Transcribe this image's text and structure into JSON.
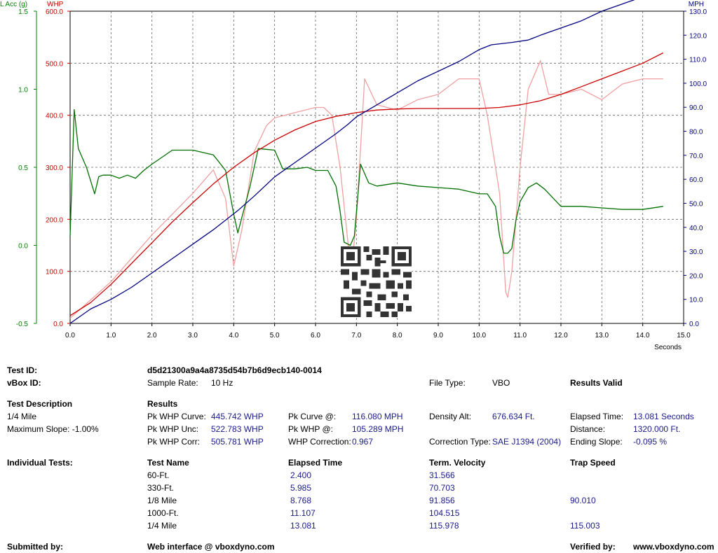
{
  "chart_data": {
    "type": "line",
    "x_axis": {
      "label": "Seconds",
      "range": [
        0,
        15
      ],
      "ticks": [
        "0.0",
        "1.0",
        "2.0",
        "3.0",
        "4.0",
        "5.0",
        "6.0",
        "7.0",
        "8.0",
        "9.0",
        "10.0",
        "11.0",
        "12.0",
        "13.0",
        "14.0",
        "15.0"
      ]
    },
    "y_axes": {
      "lacc": {
        "label": "L Acc (g)",
        "range": [
          -0.5,
          1.5
        ],
        "ticks": [
          "-0.5",
          "0.0",
          "0.5",
          "1.0",
          "1.5"
        ],
        "color": "#008000"
      },
      "whp": {
        "label": "WHP",
        "range": [
          0,
          600
        ],
        "ticks": [
          "0.0",
          "100.0",
          "200.0",
          "300.0",
          "400.0",
          "500.0",
          "600.0"
        ],
        "color": "#cc0000"
      },
      "mph": {
        "label": "MPH",
        "range": [
          0,
          130
        ],
        "ticks": [
          "0.0",
          "10.0",
          "20.0",
          "30.0",
          "40.0",
          "50.0",
          "60.0",
          "70.0",
          "80.0",
          "90.0",
          "100.0",
          "110.0",
          "120.0",
          "130.0"
        ],
        "color": "#000080"
      }
    },
    "grid": true,
    "series": [
      {
        "axis": "mph",
        "color": "#000080",
        "x": [
          0,
          0.5,
          1,
          1.5,
          2,
          2.5,
          3,
          3.5,
          3.8,
          4.1,
          4.5,
          5,
          5.5,
          6,
          6.5,
          6.8,
          7,
          7.5,
          8,
          8.5,
          9,
          9.5,
          10,
          10.3,
          10.8,
          11.2,
          11.5,
          12,
          12.5,
          13,
          13.5,
          14,
          14.5
        ],
        "y": [
          0,
          6,
          10,
          15,
          21,
          27,
          33,
          39,
          43,
          47,
          53,
          61,
          67,
          73,
          79,
          83,
          86,
          91,
          96,
          101,
          105,
          109,
          114,
          116,
          117,
          118,
          120,
          123,
          126,
          130,
          133,
          136,
          139
        ]
      },
      {
        "axis": "whp",
        "color": "#cc0000",
        "x": [
          0,
          0.5,
          1,
          1.5,
          2,
          2.5,
          3,
          3.5,
          4,
          4.5,
          5,
          5.5,
          6,
          6.5,
          7,
          7.5,
          8,
          8.5,
          9,
          9.5,
          10,
          10.5,
          11,
          11.5,
          12,
          12.5,
          13,
          13.5,
          14,
          14.5
        ],
        "y": [
          15,
          40,
          75,
          115,
          155,
          195,
          232,
          268,
          300,
          328,
          352,
          372,
          388,
          398,
          405,
          410,
          412,
          413,
          413,
          413,
          413,
          415,
          420,
          428,
          440,
          455,
          470,
          485,
          500,
          520
        ]
      },
      {
        "axis": "whp",
        "color": "#f0a0a0",
        "x": [
          0,
          1,
          2,
          3,
          3.5,
          3.8,
          4.0,
          4.2,
          4.5,
          4.8,
          5,
          5.5,
          6,
          6.2,
          6.4,
          6.6,
          6.8,
          6.9,
          7.0,
          7.2,
          7.5,
          8,
          8.5,
          9,
          9.5,
          10,
          10.2,
          10.5,
          10.65,
          10.7,
          10.8,
          11,
          11.2,
          11.5,
          11.7,
          12,
          12.5,
          13,
          13.5,
          14,
          14.5
        ],
        "y": [
          10,
          80,
          170,
          250,
          295,
          240,
          110,
          180,
          330,
          380,
          395,
          405,
          415,
          415,
          400,
          300,
          150,
          120,
          200,
          470,
          420,
          410,
          430,
          440,
          470,
          470,
          400,
          250,
          60,
          50,
          100,
          300,
          450,
          505,
          440,
          440,
          450,
          430,
          460,
          470,
          470
        ]
      },
      {
        "axis": "lacc",
        "color": "#007000",
        "x": [
          0,
          0.1,
          0.2,
          0.4,
          0.6,
          0.7,
          0.8,
          1,
          1.2,
          1.4,
          1.6,
          1.8,
          2,
          2.5,
          3,
          3.5,
          3.8,
          4,
          4.1,
          4.2,
          4.4,
          4.6,
          5,
          5.2,
          5.5,
          5.8,
          6,
          6.3,
          6.5,
          6.6,
          6.7,
          6.85,
          6.95,
          7.1,
          7.3,
          7.5,
          8,
          8.5,
          9,
          9.5,
          10,
          10.2,
          10.4,
          10.5,
          10.6,
          10.7,
          10.8,
          10.9,
          11,
          11.2,
          11.4,
          11.6,
          12,
          12.5,
          13,
          13.5,
          14,
          14.5
        ],
        "y": [
          0.06,
          0.87,
          0.62,
          0.5,
          0.33,
          0.44,
          0.45,
          0.45,
          0.43,
          0.45,
          0.43,
          0.48,
          0.52,
          0.61,
          0.61,
          0.58,
          0.48,
          0.2,
          0.08,
          0.18,
          0.38,
          0.62,
          0.61,
          0.49,
          0.49,
          0.5,
          0.48,
          0.48,
          0.38,
          0.22,
          0.02,
          0.0,
          0.06,
          0.52,
          0.4,
          0.38,
          0.4,
          0.38,
          0.37,
          0.36,
          0.33,
          0.33,
          0.25,
          0.06,
          -0.05,
          -0.05,
          -0.02,
          0.16,
          0.28,
          0.37,
          0.4,
          0.36,
          0.25,
          0.25,
          0.24,
          0.23,
          0.23,
          0.25
        ]
      }
    ]
  },
  "info": {
    "test_id_label": "Test ID:",
    "test_id_value": "d5d21300a9a4a8735d54b7b6d9ecb140-0014",
    "vbox_id_label": "vBox ID:",
    "sample_rate_label": "Sample Rate:",
    "sample_rate_value": "10 Hz",
    "file_type_label": "File Type:",
    "file_type_value": "VBO",
    "results_valid": "Results Valid",
    "test_desc_label": "Test Description",
    "test_desc_1": "1/4 Mile",
    "test_desc_2": "Maximum Slope:  -1.00%",
    "results_label": "Results",
    "pk_whp_curve_label": "Pk WHP Curve:",
    "pk_whp_curve_value": "445.742 WHP",
    "pk_whp_unc_label": "Pk WHP Unc:",
    "pk_whp_unc_value": "522.783 WHP",
    "pk_whp_corr_label": "Pk WHP Corr:",
    "pk_whp_corr_value": "505.781 WHP",
    "pk_curve_at_label": "Pk Curve @:",
    "pk_curve_at_value": "116.080 MPH",
    "pk_whp_at_label": "Pk WHP @:",
    "pk_whp_at_value": "105.289 MPH",
    "whp_corr_label": "WHP Correction:",
    "whp_corr_value": "0.967",
    "density_label": "Density Alt:",
    "density_value": "676.634 Ft.",
    "corr_type_label": "Correction Type:",
    "corr_type_value": "SAE J1394 (2004)",
    "elapsed_label": "Elapsed Time:",
    "elapsed_value": "13.081 Seconds",
    "distance_label": "Distance:",
    "distance_value": "1320.000 Ft.",
    "ending_slope_label": "Ending Slope:",
    "ending_slope_value": "-0.095 %",
    "individual_label": "Individual Tests:",
    "col_name": "Test Name",
    "col_elapsed": "Elapsed Time",
    "col_velocity": "Term. Velocity",
    "col_trap": "Trap Speed",
    "submitted_label": "Submitted by:",
    "submitted_value": "Web interface @ vboxdyno.com",
    "verified_label": "Verified by:",
    "verified_value": "www.vboxdyno.com"
  },
  "tests": [
    {
      "name": "60-Ft.",
      "elapsed": "2.400",
      "velocity": "31.566",
      "trap": ""
    },
    {
      "name": "330-Ft.",
      "elapsed": "5.985",
      "velocity": "70.703",
      "trap": ""
    },
    {
      "name": "1/8 Mile",
      "elapsed": "8.768",
      "velocity": "91.856",
      "trap": "90.010"
    },
    {
      "name": "1000-Ft.",
      "elapsed": "11.107",
      "velocity": "104.515",
      "trap": ""
    },
    {
      "name": "1/4 Mile",
      "elapsed": "13.081",
      "velocity": "115.978",
      "trap": "115.003"
    }
  ]
}
